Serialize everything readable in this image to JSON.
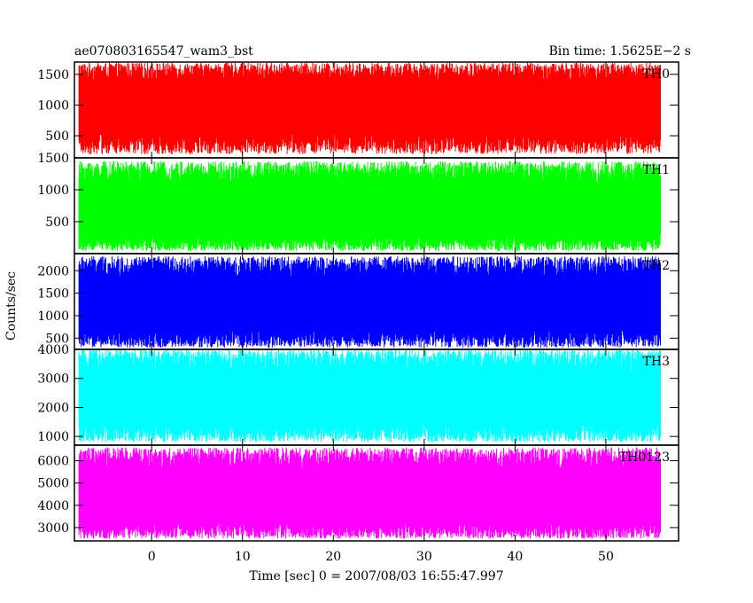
{
  "header": {
    "left_title": "ae070803165547_wam3_bst",
    "right_title": "Bin time: 1.5625E−2 s"
  },
  "chart_data": {
    "type": "line",
    "xlabel": "Time [sec] 0 = 2007/08/03 16:55:47.997",
    "ylabel": "Counts/sec",
    "xlim": [
      -8.5,
      58.0
    ],
    "x_data_range": [
      -8.0,
      56.0
    ],
    "x_ticks": [
      0,
      10,
      20,
      30,
      40,
      50
    ],
    "x_tick_labels": [
      "0",
      "10",
      "20",
      "30",
      "40",
      "50"
    ],
    "bin_time": 0.015625,
    "panels": [
      {
        "name": "TH0",
        "color": "#ff0000",
        "ylim": [
          140,
          1700
        ],
        "y_ticks": [
          500,
          1000,
          1500
        ],
        "y_tick_labels": [
          "500",
          "1000",
          "1500"
        ],
        "mean": 1000,
        "low": 200,
        "high": 1690
      },
      {
        "name": "TH1",
        "color": "#00ff00",
        "ylim": [
          0,
          1500
        ],
        "y_ticks": [
          500,
          1000,
          1500
        ],
        "y_tick_labels": [
          "500",
          "1000",
          "1500"
        ],
        "mean": 640,
        "low": 40,
        "high": 1450
      },
      {
        "name": "TH2",
        "color": "#0000ff",
        "ylim": [
          250,
          2380
        ],
        "y_ticks": [
          500,
          1000,
          1500,
          2000
        ],
        "y_tick_labels": [
          "500",
          "1000",
          "1500",
          "2000"
        ],
        "mean": 1200,
        "low": 290,
        "high": 2320
      },
      {
        "name": "TH3",
        "color": "#00ffff",
        "ylim": [
          700,
          4000
        ],
        "y_ticks": [
          1000,
          2000,
          3000,
          4000
        ],
        "y_tick_labels": [
          "1000",
          "2000",
          "3000",
          "4000"
        ],
        "mean": 2300,
        "low": 800,
        "high": 4000
      },
      {
        "name": "TH0123",
        "color": "#ff00ff",
        "ylim": [
          2400,
          6700
        ],
        "y_ticks": [
          3000,
          4000,
          5000,
          6000
        ],
        "y_tick_labels": [
          "3000",
          "4000",
          "5000",
          "6000"
        ],
        "mean": 4300,
        "low": 2500,
        "high": 6600
      }
    ]
  }
}
